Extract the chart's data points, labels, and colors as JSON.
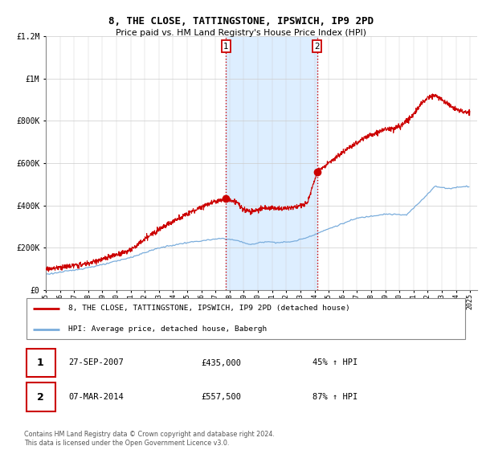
{
  "title": "8, THE CLOSE, TATTINGSTONE, IPSWICH, IP9 2PD",
  "subtitle": "Price paid vs. HM Land Registry's House Price Index (HPI)",
  "property_label": "8, THE CLOSE, TATTINGSTONE, IPSWICH, IP9 2PD (detached house)",
  "hpi_label": "HPI: Average price, detached house, Babergh",
  "transaction1_date": "27-SEP-2007",
  "transaction1_price": 435000,
  "transaction1_pct": "45% ↑ HPI",
  "transaction2_date": "07-MAR-2014",
  "transaction2_price": 557500,
  "transaction2_pct": "87% ↑ HPI",
  "footer": "Contains HM Land Registry data © Crown copyright and database right 2024.\nThis data is licensed under the Open Government Licence v3.0.",
  "ylim": [
    0,
    1200000
  ],
  "yticks": [
    0,
    200000,
    400000,
    600000,
    800000,
    1000000,
    1200000
  ],
  "ytick_labels": [
    "£0",
    "£200K",
    "£400K",
    "£600K",
    "£800K",
    "£1M",
    "£1.2M"
  ],
  "property_color": "#cc0000",
  "hpi_color": "#7aaddc",
  "shaded_region_color": "#ddeeff",
  "transaction1_x": 2007.75,
  "transaction2_x": 2014.17,
  "marker1_y": 435000,
  "marker2_y": 557500,
  "year_start": 1995,
  "year_end": 2025,
  "xlim_start": 1995.0,
  "xlim_end": 2025.5
}
